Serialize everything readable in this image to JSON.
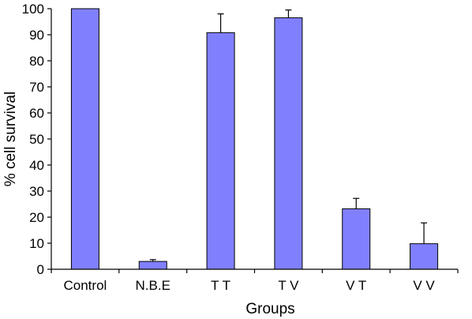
{
  "chart_data": {
    "type": "bar",
    "xlabel": "Groups",
    "ylabel": "% cell survival",
    "ylim": [
      0,
      100
    ],
    "yticks": [
      0,
      10,
      20,
      30,
      40,
      50,
      60,
      70,
      80,
      90,
      100
    ],
    "grid": false,
    "categories": [
      "Control",
      "N.B.E",
      "T T",
      "T V",
      "V T",
      "V V"
    ],
    "values": [
      100,
      3,
      90.8,
      96.5,
      23.2,
      9.8
    ],
    "errors": [
      0,
      0.7,
      7.2,
      3,
      4,
      8
    ],
    "bar_color": "#8080ff",
    "bar_edge_color": "#000000"
  }
}
